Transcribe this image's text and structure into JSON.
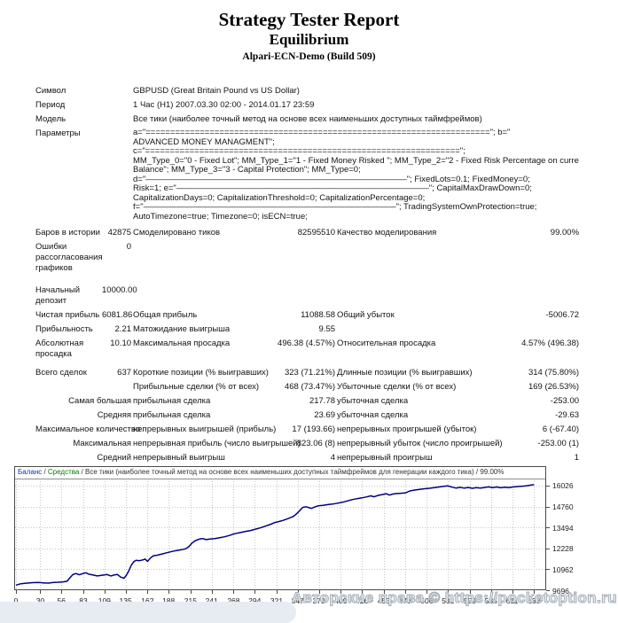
{
  "header": {
    "title": "Strategy Tester Report",
    "subtitle": "Equilibrium",
    "server": "Alpari-ECN-Demo (Build 509)"
  },
  "watermark": "Авторские права © https://pocketoption.ru",
  "report": {
    "rows": [
      {
        "type": "kv",
        "label": "Символ",
        "value": "GBPUSD (Great Britain Pound vs US Dollar)"
      },
      {
        "type": "kv",
        "label": "Период",
        "value": "1 Час (H1) 2007.03.30 02:00 - 2014.01.17 23:59"
      },
      {
        "type": "kv",
        "label": "Модель",
        "value": "Все тики (наиболее точный метод на основе всех наименьших доступных таймфреймов)"
      },
      {
        "type": "kv",
        "label": "Параметры",
        "lines": [
          "a=\"======================================================================\"; b=\"",
          "ADVANCED MONEY MANAGMENT\";",
          "c=\"================================================================\";",
          "MM_Type_0=\"0 - Fixed Lot\"; MM_Type_1=\"1 - Fixed Money Risked \"; MM_Type_2=\"2 - Fixed Risk Percentage on current",
          "Balance\"; MM_Type_3=\"3 - Capital Protection\"; MM_Type=0;",
          "d=\"———————————————————————————————\"; FixedLots=0.1; FixedMoney=0;",
          "Risk=1; e=\"——————————————————————————————\"; CapitalMaxDrawDown=0;",
          "CapitalizationDays=0; CapitalizationThreshold=0; CapitalizationPercentage=0;",
          "f=\"——————————————————————————————\"; TradingSystemOwnProtection=true;",
          "AutoTimezone=true; Timezone=0; isECN=true;"
        ]
      },
      {
        "type": "s6",
        "gap": 4,
        "c": [
          "Баров в истории",
          "42875",
          "Смоделировано тиков",
          "82595510",
          "Качество моделирования",
          "99.00%"
        ]
      },
      {
        "type": "s6",
        "c": [
          "Ошибки рассогласования графиков",
          "0",
          "",
          "",
          "",
          ""
        ]
      },
      {
        "type": "s6",
        "gap": 10,
        "c": [
          "Начальный депозит",
          "10000.00",
          "",
          "",
          "",
          ""
        ]
      },
      {
        "type": "s6",
        "c": [
          "Чистая прибыль",
          "6081.86",
          "Общая прибыль",
          "11088.58",
          "Общий убыток",
          "-5006.72"
        ]
      },
      {
        "type": "s6",
        "c": [
          "Прибыльность",
          "2.21",
          "Матожидание выигрыша",
          "9.55",
          "",
          ""
        ]
      },
      {
        "type": "s6",
        "c": [
          "Абсолютная просадка",
          "10.10",
          "Максимальная просадка",
          "496.38 (4.57%)",
          "Относительная просадка",
          "4.57% (496.38)"
        ]
      },
      {
        "type": "s6",
        "gap": 6,
        "c": [
          "Всего сделок",
          "637",
          "Короткие позиции (% выигравших)",
          "323 (71.21%)",
          "Длинные позиции (% выигравших)",
          "314 (75.80%)"
        ]
      },
      {
        "type": "m5",
        "c": [
          "",
          "Прибыльные сделки (% от всех)",
          "468 (73.47%)",
          "Убыточные сделки (% от всех)",
          "169 (26.53%)"
        ]
      },
      {
        "type": "m5",
        "c": [
          "Самая большая",
          "прибыльная сделка",
          "217.78",
          "убыточная сделка",
          "-253.00"
        ]
      },
      {
        "type": "m5",
        "c": [
          "Средняя",
          "прибыльная сделка",
          "23.69",
          "убыточная сделка",
          "-29.63"
        ]
      },
      {
        "type": "m5",
        "c": [
          "Максимальное количество",
          "непрерывных выигрышей (прибыль)",
          "17 (193.66)",
          "непрерывных проигрышей (убыток)",
          "6 (-67.40)"
        ]
      },
      {
        "type": "m5",
        "c": [
          "Максимальная",
          "непрерывная прибыль (число выигрышей)",
          "823.06 (8)",
          "непрерывный убыток (число проигрышей)",
          "-253.00 (1)"
        ]
      },
      {
        "type": "m5",
        "c": [
          "Средний",
          "непрерывный выигрыш",
          "4",
          "непрерывный проигрыш",
          "1"
        ]
      }
    ]
  },
  "chart_data": {
    "type": "line",
    "legend": {
      "balance_label": "Баланс",
      "equity_label": "Средства",
      "model_label": "Все тики (наиболее точный метод на основе всех наименьших доступных таймфреймов для генерации каждого тика)",
      "quality": "99.00%",
      "sep": " / "
    },
    "xlabel": "",
    "ylabel": "",
    "x_ticks": [
      0,
      30,
      56,
      83,
      109,
      135,
      162,
      188,
      215,
      241,
      268,
      294,
      321,
      347,
      373,
      400,
      426,
      453,
      479,
      506,
      532,
      559,
      585,
      611,
      638
    ],
    "y_ticks": [
      16026,
      14760,
      13494,
      12228,
      10962,
      9696
    ],
    "x_range": [
      0,
      653
    ],
    "y_range": [
      9696,
      17205
    ],
    "grid": "dotted",
    "colors": {
      "balance": "#000080",
      "balance_legend": "#0033cc",
      "equity_legend": "#008000",
      "grid": "#c6c6c6",
      "frame": "#4a4a4a"
    },
    "series": [
      {
        "name": "Баланс",
        "color": "#000080",
        "points": [
          [
            0,
            10000
          ],
          [
            6,
            10090
          ],
          [
            12,
            10120
          ],
          [
            20,
            10150
          ],
          [
            28,
            10160
          ],
          [
            34,
            10140
          ],
          [
            40,
            10125
          ],
          [
            46,
            10170
          ],
          [
            52,
            10180
          ],
          [
            58,
            10200
          ],
          [
            63,
            10240
          ],
          [
            66,
            10420
          ],
          [
            70,
            10640
          ],
          [
            74,
            10705
          ],
          [
            78,
            10630
          ],
          [
            82,
            10700
          ],
          [
            86,
            10750
          ],
          [
            90,
            10660
          ],
          [
            94,
            10630
          ],
          [
            100,
            10560
          ],
          [
            106,
            10605
          ],
          [
            112,
            10645
          ],
          [
            117,
            10560
          ],
          [
            121,
            10620
          ],
          [
            125,
            10645
          ],
          [
            129,
            10490
          ],
          [
            133,
            10420
          ],
          [
            136,
            10600
          ],
          [
            139,
            10870
          ],
          [
            142,
            11200
          ],
          [
            145,
            11420
          ],
          [
            148,
            11510
          ],
          [
            152,
            11480
          ],
          [
            156,
            11525
          ],
          [
            159,
            11585
          ],
          [
            162,
            11440
          ],
          [
            165,
            11610
          ],
          [
            169,
            11775
          ],
          [
            174,
            11815
          ],
          [
            180,
            11890
          ],
          [
            186,
            11965
          ],
          [
            192,
            12040
          ],
          [
            198,
            12100
          ],
          [
            204,
            12145
          ],
          [
            209,
            12200
          ],
          [
            213,
            12340
          ],
          [
            217,
            12560
          ],
          [
            221,
            12700
          ],
          [
            226,
            12790
          ],
          [
            230,
            12825
          ],
          [
            234,
            12760
          ],
          [
            239,
            12795
          ],
          [
            245,
            12820
          ],
          [
            251,
            12870
          ],
          [
            257,
            12930
          ],
          [
            263,
            13010
          ],
          [
            269,
            13110
          ],
          [
            276,
            13185
          ],
          [
            283,
            13255
          ],
          [
            289,
            13310
          ],
          [
            295,
            13390
          ],
          [
            302,
            13490
          ],
          [
            308,
            13590
          ],
          [
            314,
            13690
          ],
          [
            319,
            13795
          ],
          [
            324,
            13855
          ],
          [
            329,
            13925
          ],
          [
            335,
            14030
          ],
          [
            341,
            14140
          ],
          [
            345,
            14290
          ],
          [
            349,
            14490
          ],
          [
            353,
            14705
          ],
          [
            357,
            14750
          ],
          [
            361,
            14690
          ],
          [
            364,
            14645
          ],
          [
            368,
            14730
          ],
          [
            372,
            14800
          ],
          [
            378,
            14835
          ],
          [
            384,
            14875
          ],
          [
            390,
            14910
          ],
          [
            396,
            14965
          ],
          [
            402,
            15015
          ],
          [
            408,
            15095
          ],
          [
            414,
            15175
          ],
          [
            420,
            15235
          ],
          [
            426,
            15285
          ],
          [
            432,
            15345
          ],
          [
            437,
            15410
          ],
          [
            441,
            15350
          ],
          [
            446,
            15435
          ],
          [
            451,
            15485
          ],
          [
            456,
            15535
          ],
          [
            460,
            15450
          ],
          [
            464,
            15515
          ],
          [
            469,
            15545
          ],
          [
            474,
            15565
          ],
          [
            480,
            15590
          ],
          [
            485,
            15705
          ],
          [
            491,
            15755
          ],
          [
            497,
            15795
          ],
          [
            503,
            15835
          ],
          [
            509,
            15865
          ],
          [
            515,
            15905
          ],
          [
            521,
            15945
          ],
          [
            527,
            15985
          ],
          [
            532,
            16010
          ],
          [
            537,
            15935
          ],
          [
            542,
            15880
          ],
          [
            547,
            15925
          ],
          [
            552,
            15875
          ],
          [
            557,
            15915
          ],
          [
            562,
            15865
          ],
          [
            567,
            15905
          ],
          [
            572,
            15875
          ],
          [
            577,
            15915
          ],
          [
            582,
            15950
          ],
          [
            587,
            15905
          ],
          [
            592,
            15945
          ],
          [
            597,
            15895
          ],
          [
            602,
            15935
          ],
          [
            607,
            15905
          ],
          [
            612,
            15945
          ],
          [
            617,
            15965
          ],
          [
            622,
            15985
          ],
          [
            627,
            16005
          ],
          [
            631,
            16030
          ],
          [
            635,
            16060
          ],
          [
            638,
            16082
          ]
        ]
      }
    ]
  }
}
